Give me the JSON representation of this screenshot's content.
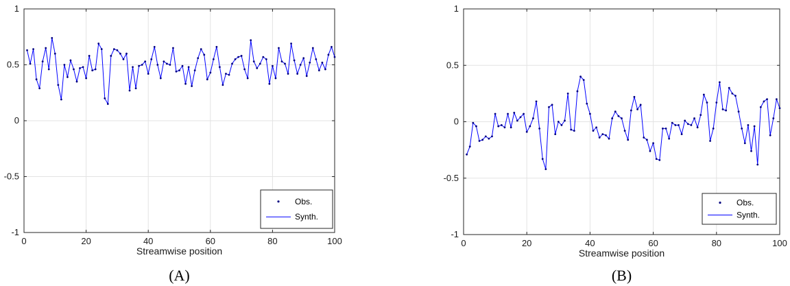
{
  "chart_data": [
    {
      "type": "line",
      "panel_label": "(A)",
      "xlabel": "Streamwise position",
      "ylabel": "",
      "xlim": [
        0,
        100
      ],
      "ylim": [
        -1,
        1
      ],
      "x_ticks": [
        0,
        20,
        40,
        60,
        80,
        100
      ],
      "y_ticks": [
        -1,
        -0.5,
        0,
        0.5,
        1
      ],
      "y_tick_labels": [
        "-1",
        "-0.5",
        "0",
        "0.5",
        "1"
      ],
      "grid": true,
      "legend_position": "bottom-right",
      "color": "#0000ff",
      "series": [
        {
          "name": "Obs.",
          "style": "points"
        },
        {
          "name": "Synth.",
          "style": "line"
        }
      ],
      "x": [
        1,
        2,
        3,
        4,
        5,
        6,
        7,
        8,
        9,
        10,
        11,
        12,
        13,
        14,
        15,
        16,
        17,
        18,
        19,
        20,
        21,
        22,
        23,
        24,
        25,
        26,
        27,
        28,
        29,
        30,
        31,
        32,
        33,
        34,
        35,
        36,
        37,
        38,
        39,
        40,
        41,
        42,
        43,
        44,
        45,
        46,
        47,
        48,
        49,
        50,
        51,
        52,
        53,
        54,
        55,
        56,
        57,
        58,
        59,
        60,
        61,
        62,
        63,
        64,
        65,
        66,
        67,
        68,
        69,
        70,
        71,
        72,
        73,
        74,
        75,
        76,
        77,
        78,
        79,
        80,
        81,
        82,
        83,
        84,
        85,
        86,
        87,
        88,
        89,
        90,
        91,
        92,
        93,
        94,
        95,
        96,
        97,
        98,
        99,
        100
      ],
      "values": [
        0.63,
        0.51,
        0.64,
        0.37,
        0.29,
        0.53,
        0.65,
        0.46,
        0.74,
        0.6,
        0.32,
        0.19,
        0.5,
        0.39,
        0.54,
        0.46,
        0.35,
        0.47,
        0.48,
        0.38,
        0.58,
        0.45,
        0.46,
        0.69,
        0.64,
        0.2,
        0.15,
        0.58,
        0.64,
        0.63,
        0.6,
        0.55,
        0.6,
        0.27,
        0.48,
        0.29,
        0.49,
        0.5,
        0.53,
        0.42,
        0.55,
        0.66,
        0.5,
        0.38,
        0.53,
        0.51,
        0.5,
        0.65,
        0.44,
        0.45,
        0.49,
        0.33,
        0.48,
        0.31,
        0.45,
        0.56,
        0.64,
        0.59,
        0.37,
        0.43,
        0.55,
        0.66,
        0.48,
        0.32,
        0.42,
        0.41,
        0.51,
        0.55,
        0.57,
        0.58,
        0.46,
        0.38,
        0.72,
        0.53,
        0.47,
        0.51,
        0.57,
        0.55,
        0.33,
        0.49,
        0.38,
        0.65,
        0.53,
        0.51,
        0.42,
        0.69,
        0.54,
        0.42,
        0.5,
        0.56,
        0.4,
        0.52,
        0.65,
        0.55,
        0.45,
        0.52,
        0.46,
        0.59,
        0.66,
        0.57
      ]
    },
    {
      "type": "line",
      "panel_label": "(B)",
      "xlabel": "Streamwise position",
      "ylabel": "",
      "xlim": [
        0,
        100
      ],
      "ylim": [
        -1,
        1
      ],
      "x_ticks": [
        0,
        20,
        40,
        60,
        80,
        100
      ],
      "y_ticks": [
        -1,
        -0.5,
        0,
        0.5,
        1
      ],
      "y_tick_labels": [
        "-1",
        "-0.5",
        "0",
        "0.5",
        "1"
      ],
      "grid": true,
      "legend_position": "bottom-right",
      "color": "#0000ff",
      "series": [
        {
          "name": "Obs.",
          "style": "points"
        },
        {
          "name": "Synth.",
          "style": "line"
        }
      ],
      "x": [
        1,
        2,
        3,
        4,
        5,
        6,
        7,
        8,
        9,
        10,
        11,
        12,
        13,
        14,
        15,
        16,
        17,
        18,
        19,
        20,
        21,
        22,
        23,
        24,
        25,
        26,
        27,
        28,
        29,
        30,
        31,
        32,
        33,
        34,
        35,
        36,
        37,
        38,
        39,
        40,
        41,
        42,
        43,
        44,
        45,
        46,
        47,
        48,
        49,
        50,
        51,
        52,
        53,
        54,
        55,
        56,
        57,
        58,
        59,
        60,
        61,
        62,
        63,
        64,
        65,
        66,
        67,
        68,
        69,
        70,
        71,
        72,
        73,
        74,
        75,
        76,
        77,
        78,
        79,
        80,
        81,
        82,
        83,
        84,
        85,
        86,
        87,
        88,
        89,
        90,
        91,
        92,
        93,
        94,
        95,
        96,
        97,
        98,
        99,
        100
      ],
      "values": [
        -0.29,
        -0.22,
        -0.01,
        -0.04,
        -0.17,
        -0.16,
        -0.13,
        -0.15,
        -0.13,
        0.07,
        -0.04,
        -0.03,
        -0.05,
        0.07,
        -0.05,
        0.08,
        0.01,
        0.04,
        0.07,
        -0.09,
        -0.04,
        0.03,
        0.18,
        -0.06,
        -0.33,
        -0.42,
        0.13,
        0.15,
        -0.11,
        0.0,
        -0.03,
        0.01,
        0.25,
        -0.07,
        -0.08,
        0.27,
        0.4,
        0.37,
        0.16,
        0.07,
        -0.08,
        -0.05,
        -0.14,
        -0.11,
        -0.12,
        -0.15,
        0.03,
        0.09,
        0.05,
        0.03,
        -0.08,
        -0.16,
        0.1,
        0.22,
        0.11,
        0.15,
        -0.14,
        -0.16,
        -0.26,
        -0.19,
        -0.33,
        -0.34,
        -0.06,
        -0.06,
        -0.15,
        -0.01,
        -0.03,
        -0.03,
        -0.11,
        0.01,
        -0.02,
        -0.03,
        0.03,
        -0.05,
        0.06,
        0.24,
        0.17,
        -0.17,
        -0.06,
        0.17,
        0.35,
        0.11,
        0.1,
        0.3,
        0.25,
        0.23,
        0.09,
        -0.06,
        -0.19,
        -0.03,
        -0.26,
        -0.04,
        -0.38,
        0.13,
        0.18,
        0.2,
        -0.12,
        0.03,
        0.2,
        0.12
      ]
    }
  ]
}
